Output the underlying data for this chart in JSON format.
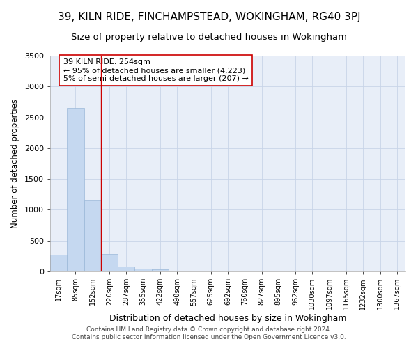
{
  "title": "39, KILN RIDE, FINCHAMPSTEAD, WOKINGHAM, RG40 3PJ",
  "subtitle": "Size of property relative to detached houses in Wokingham",
  "xlabel": "Distribution of detached houses by size in Wokingham",
  "ylabel": "Number of detached properties",
  "footer_line1": "Contains HM Land Registry data © Crown copyright and database right 2024.",
  "footer_line2": "Contains public sector information licensed under the Open Government Licence v3.0.",
  "bin_labels": [
    "17sqm",
    "85sqm",
    "152sqm",
    "220sqm",
    "287sqm",
    "355sqm",
    "422sqm",
    "490sqm",
    "557sqm",
    "625sqm",
    "692sqm",
    "760sqm",
    "827sqm",
    "895sqm",
    "962sqm",
    "1030sqm",
    "1097sqm",
    "1165sqm",
    "1232sqm",
    "1300sqm",
    "1367sqm"
  ],
  "bar_values": [
    270,
    2650,
    1150,
    280,
    80,
    45,
    30,
    0,
    0,
    0,
    0,
    0,
    0,
    0,
    0,
    0,
    0,
    0,
    0,
    0,
    0
  ],
  "bar_color": "#c5d8f0",
  "bar_edge_color": "#9ab8d8",
  "grid_color": "#c8d4e8",
  "background_color": "#e8eef8",
  "red_line_x": 2.5,
  "red_line_color": "#cc0000",
  "annotation_text": "39 KILN RIDE: 254sqm\n← 95% of detached houses are smaller (4,223)\n5% of semi-detached houses are larger (207) →",
  "annotation_box_color": "white",
  "annotation_box_edge": "#cc0000",
  "ylim": [
    0,
    3500
  ],
  "yticks": [
    0,
    500,
    1000,
    1500,
    2000,
    2500,
    3000,
    3500
  ],
  "num_bins": 21,
  "title_fontsize": 11,
  "subtitle_fontsize": 9.5
}
